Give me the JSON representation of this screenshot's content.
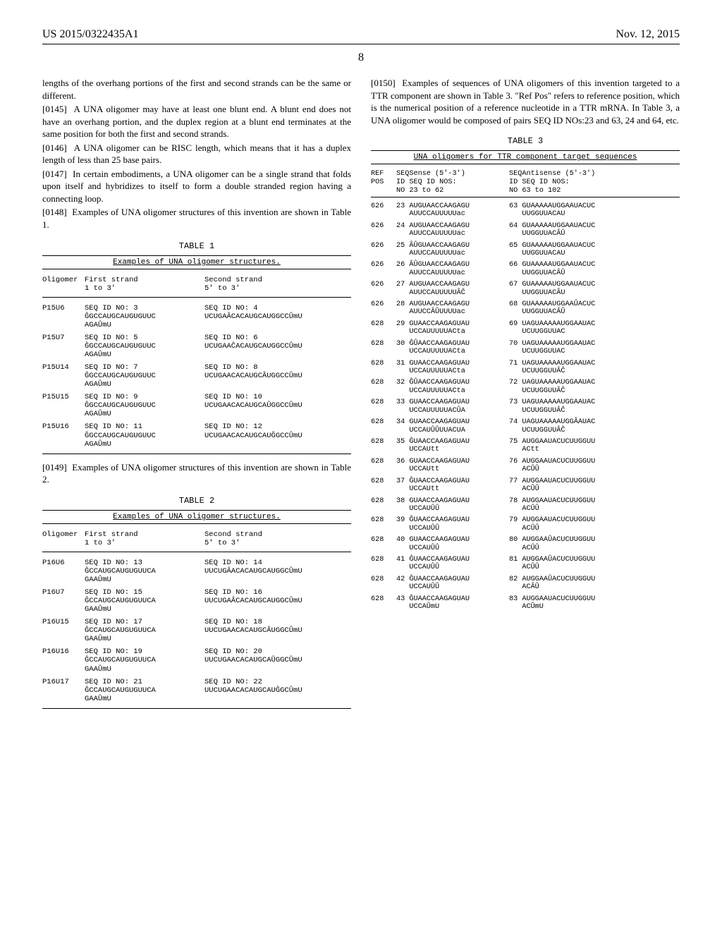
{
  "header": {
    "left": "US 2015/0322435A1",
    "right": "Nov. 12, 2015",
    "page": "8"
  },
  "paragraphs": {
    "p0": "lengths of the overhang portions of the first and second strands can be the same or different.",
    "p0145num": "[0145]",
    "p0145": "A UNA oligomer may have at least one blunt end. A blunt end does not have an overhang portion, and the duplex region at a blunt end terminates at the same position for both the first and second strands.",
    "p0146num": "[0146]",
    "p0146": "A UNA oligomer can be RISC length, which means that it has a duplex length of less than 25 base pairs.",
    "p0147num": "[0147]",
    "p0147": "In certain embodiments, a UNA oligomer can be a single strand that folds upon itself and hybridizes to itself to form a double stranded region having a connecting loop.",
    "p0148num": "[0148]",
    "p0148": "Examples of UNA oligomer structures of this invention are shown in Table 1.",
    "p0149num": "[0149]",
    "p0149": "Examples of UNA oligomer structures of this invention are shown in Table 2.",
    "p0150num": "[0150]",
    "p0150": "Examples of sequences of UNA oligomers of this invention targeted to a TTR component are shown in Table 3. \"Ref Pos\" refers to reference position, which is the numerical position of a reference nucleotide in a TTR mRNA. In Table 3, a UNA oligomer would be composed of pairs SEQ ID NOs:23 and 63, 24 and 64, etc."
  },
  "table1": {
    "title": "TABLE 1",
    "subtitle": "Examples of UNA oligomer structures.",
    "hdr": {
      "c1": "Oligomer",
      "c2": "First strand\n1 to 3'",
      "c3": "Second strand\n5' to 3'"
    },
    "rows": [
      {
        "c1": "P15U6",
        "c2": "SEQ ID NO: 3\nĜGCCAUGCAUGUGUUC\nAGAÛmU",
        "c3": "SEQ ID NO: 4\nUCUGAÂCACAUGCAUGGCCÛmU"
      },
      {
        "c1": "P15U7",
        "c2": "SEQ ID NO: 5\nĜGCCAUGCAUGUGUUC\nAGAÛmU",
        "c3": "SEQ ID NO: 6\nUCUGAAĈACAUGCAUGGCCÛmU"
      },
      {
        "c1": "P15U14",
        "c2": "SEQ ID NO: 7\nĜGCCAUGCAUGUGUUC\nAGAÛmU",
        "c3": "SEQ ID NO: 8\nUCUGAACACAUGCÂUGGCCÛmU"
      },
      {
        "c1": "P15U15",
        "c2": "SEQ ID NO: 9\nĜGCCAUGCAUGUGUUC\nAGAÛmU",
        "c3": "SEQ ID NO: 10\nUCUGAACACAUGCAÛGGCCÛmU"
      },
      {
        "c1": "P15U16",
        "c2": "SEQ ID NO: 11\nĜGCCAUGCAUGUGUUC\nAGAÛmU",
        "c3": "SEQ ID NO: 12\nUCUGAACACAUGCAUĜGCCÛmU"
      }
    ]
  },
  "table2": {
    "title": "TABLE 2",
    "subtitle": "Examples of UNA oligomer structures.",
    "hdr": {
      "c1": "Oligomer",
      "c2": "First strand\n1 to 3'",
      "c3": "Second strand\n5' to 3'"
    },
    "rows": [
      {
        "c1": "P16U6",
        "c2": "SEQ ID NO: 13\nĜCCAUGCAUGUGUUCA\nGAAÛmU",
        "c3": "SEQ ID NO: 14\nUUCUGÂACACAUGCAUGGCÛmU"
      },
      {
        "c1": "P16U7",
        "c2": "SEQ ID NO: 15\nĜCCAUGCAUGUGUUCA\nGAAÛmU",
        "c3": "SEQ ID NO: 16\nUUCUGAÂCACAUGCAUGGCÛmU"
      },
      {
        "c1": "P16U15",
        "c2": "SEQ ID NO: 17\nĜCCAUGCAUGUGUUCA\nGAAÛmU",
        "c3": "SEQ ID NO: 18\nUUCUGAACACAUGCÂUGGCÛmU"
      },
      {
        "c1": "P16U16",
        "c2": "SEQ ID NO: 19\nĜCCAUGCAUGUGUUCA\nGAAÛmU",
        "c3": "SEQ ID NO: 20\nUUCUGAACACAUGCAÛGGCÛmU"
      },
      {
        "c1": "P16U17",
        "c2": "SEQ ID NO: 21\nĜCCAUGCAUGUGUUCA\nGAAÛmU",
        "c3": "SEQ ID NO: 22\nUUCUGAACACAUGCAUĜGCÛmU"
      }
    ]
  },
  "table3": {
    "title": "TABLE 3",
    "subtitle": "UNA oligomers for TTR component target sequences",
    "hdr": {
      "c1": "REF\nPOS",
      "c2": "SEQSense (5'-3')\nID SEQ ID NOS:\nNO 23 to 62",
      "c3": "SEQAntisense (5'-3')\nID SEQ ID NOS:\nNO 63 to 102"
    },
    "rows": [
      {
        "c1": "626",
        "c2": "23 AUGUAACCAAGAGU\n   AUUCCAUUUUUac",
        "c3": "63 GUAAAAAUGGAAUACUC\n   UUGGUUACAU"
      },
      {
        "c1": "626",
        "c2": "24 AUGUAACCAAGAGU\n   AUUCCAUUUUUac",
        "c3": "64 GUAAAAAUGGAAUACUC\n   UUGGUUACÂÛ"
      },
      {
        "c1": "626",
        "c2": "25 ÂÛGUAACCAAGAGU\n   AUUCCAUUUUUac",
        "c3": "65 GUAAAAAUGGAAUACUC\n   UUGGUUACAU"
      },
      {
        "c1": "626",
        "c2": "26 ÂÛGUAACCAAGAGU\n   AUUCCAUUUUUac",
        "c3": "66 GUAAAAAUGGAAUACUC\n   UUGGUUACÂÛ"
      },
      {
        "c1": "626",
        "c2": "27 AUGUAACCAAGAGU\n   AUUCCAUUUUUÂĈ",
        "c3": "67 GUAAAAAUGGAAUACUC\n   UUGGUUACÂU"
      },
      {
        "c1": "626",
        "c2": "28 AUGUAACCAAGAGU\n   AUUCCÂÛUUUUac",
        "c3": "68 GUAAAAAUGGAAÛACUC\n   UUGGUUACÂÛ"
      },
      {
        "c1": "628",
        "c2": "29 GUAACCAAGAGUAU\n   UCCAUUUUUACta",
        "c3": "69 UAGUAAAAAUGGAAUAC\n   UCUUGGUUAC"
      },
      {
        "c1": "628",
        "c2": "30 ĜÛAACCAAGAGUAU\n   UCCAUUUUUACta",
        "c3": "70 UAGUAAAAAUGGAAUAC\n   UCUUGGUUAC"
      },
      {
        "c1": "628",
        "c2": "31 GUAACCAAGAGUAU\n   UCCAUUUUUACta",
        "c3": "71 UAGUAAAAAUGGAAUAC\n   UCUUGGUUÂĈ"
      },
      {
        "c1": "628",
        "c2": "32 ĜÛAACCAAGAGUAU\n   UCCAUUUUUACta",
        "c3": "72 UAGUAAAAAUGGAAUAC\n   UCUUGGUUÂĈ"
      },
      {
        "c1": "628",
        "c2": "33 GUAACCAAGAGUAU\n   UCCAUUUUUACÛA",
        "c3": "73 UAGUAAAAAUGGAAUAC\n   UCUUGGUUÂĈ"
      },
      {
        "c1": "628",
        "c2": "34 GUAACCAAGAGUAU\n   UCCAUÛÛUUACUA",
        "c3": "74 UAGUAAAAAUGGÂAUAC\n   UCUUGGUUÂĈ"
      },
      {
        "c1": "628",
        "c2": "35 ĜUAACCAAGAGUAU\n   UCCAUtt",
        "c3": "75 AUGGAAUACUCUUGGUU\n   ACtt"
      },
      {
        "c1": "628",
        "c2": "36 GUAACCAAGAGUAU\n   UCCAUtt",
        "c3": "76 AUGGAAUACUCUUGGUU\n   ACÛÛ"
      },
      {
        "c1": "628",
        "c2": "37 ĜUAACCAAGAGUAU\n   UCCAUtt",
        "c3": "77 AUGGAAUACUCUUGGUU\n   ACÛÛ"
      },
      {
        "c1": "628",
        "c2": "38 GUAACCAAGAGUAU\n   UCCAUÛÛ",
        "c3": "78 AUGGAAUACUCUUGGUU\n   ACÛÛ"
      },
      {
        "c1": "628",
        "c2": "39 ĜUAACCAAGAGUAU\n   UCCAUÛÛ",
        "c3": "79 AUGGAAUACUCUUGGUU\n   ACÛÛ"
      },
      {
        "c1": "628",
        "c2": "40 GUAACCAAGAGUAU\n   UCCAUÛÛ",
        "c3": "80 AUGGAAÛACUCUUGGUU\n   ACÛÛ"
      },
      {
        "c1": "628",
        "c2": "41 ĜUAACCAAGAGUAU\n   UCCAUÛÛ",
        "c3": "81 AUGGAAÛACUCUUGGUU\n   ACÛÛ"
      },
      {
        "c1": "628",
        "c2": "42 ĜUAACCAAGAGUAU\n   UCCAUÛÛ",
        "c3": "82 AUGGAAÛACUCUUGGUU\n   ACÂÛ"
      },
      {
        "c1": "628",
        "c2": "43 ĜUAACCAAGAGUAU\n   UCCAÛmU",
        "c3": "83 AUGGAAUACUCUUGGUU\n   ACÛmU"
      }
    ]
  }
}
